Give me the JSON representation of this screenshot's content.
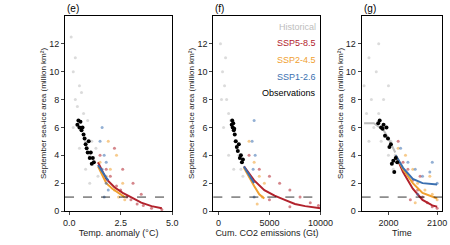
{
  "chart_data": [
    {
      "type": "scatter",
      "title": "(e)",
      "x_label": "Temp. anomaly (°C)",
      "y_label": "September sea-ice area (million km²)",
      "xlim": [
        -0.2,
        5
      ],
      "xticks": [
        {
          "value": 0,
          "label": "0.0"
        },
        {
          "value": 2.5,
          "label": "2.5"
        },
        {
          "value": 5,
          "label": "5.0"
        }
      ],
      "ylim": [
        0,
        14
      ],
      "yticks": [
        0,
        2,
        4,
        6,
        8,
        10,
        12
      ],
      "threshold": 1,
      "series": [
        {
          "name": "Historical",
          "color": "#bdbdbd",
          "marker": "circle",
          "x": [
            0.1,
            0.2,
            0.3,
            0.4,
            0.5,
            0.6,
            0.7,
            0.8,
            0.9,
            1.0,
            1.1,
            1.2,
            1.3,
            1.4,
            0.2,
            0.5,
            0.8,
            1.0,
            0.3,
            0.6
          ],
          "y": [
            12.5,
            10,
            8,
            7.5,
            9,
            6,
            7,
            5,
            6.5,
            4,
            5,
            3.5,
            4.5,
            2.5,
            6,
            4.5,
            3,
            2,
            11,
            8.5
          ]
        },
        {
          "name": "SSP5-8.5",
          "color": "#b2222c",
          "marker": "circle",
          "x": [
            1.5,
            1.8,
            2.0,
            2.3,
            2.5,
            2.8,
            3.0,
            3.3,
            3.6,
            4.0,
            4.5,
            2.2,
            2.6,
            3.1,
            3.5
          ],
          "y": [
            4,
            3,
            2.5,
            1.8,
            1.5,
            1.0,
            0.8,
            0.5,
            0.4,
            0.2,
            0.1,
            4.5,
            3,
            2,
            1.2
          ],
          "trend": {
            "x": [
              1.4,
              1.8,
              2.2,
              2.6,
              3.0,
              3.5,
              4.0,
              4.5
            ],
            "y": [
              3.5,
              2.3,
              1.7,
              1.3,
              1.0,
              0.6,
              0.35,
              0.2
            ]
          }
        },
        {
          "name": "SSP2-4.5",
          "color": "#f0a030",
          "marker": "circle",
          "x": [
            1.5,
            1.8,
            2.0,
            2.2,
            2.4,
            2.7,
            1.9,
            2.3,
            2.6
          ],
          "y": [
            3.5,
            2.5,
            3,
            1.5,
            1,
            0.8,
            5,
            4,
            2
          ],
          "trend": {
            "x": [
              1.4,
              1.8,
              2.1,
              2.4,
              2.7
            ],
            "y": [
              3.2,
              2.0,
              1.6,
              1.3,
              1.0
            ]
          }
        },
        {
          "name": "SSP1-2.6",
          "color": "#3a6fb0",
          "marker": "circle",
          "x": [
            1.5,
            1.6,
            1.7,
            1.8,
            1.9,
            1.6,
            1.7,
            1.8
          ],
          "y": [
            5,
            3,
            4,
            2,
            1.5,
            6,
            1,
            3.5
          ],
          "trend": {
            "x": [
              1.4,
              1.6,
              1.8,
              1.9
            ],
            "y": [
              3.3,
              2.8,
              2.4,
              2.2
            ]
          }
        },
        {
          "name": "Observations",
          "color": "#000000",
          "marker": "circle",
          "x": [
            0.4,
            0.45,
            0.5,
            0.55,
            0.6,
            0.65,
            0.7,
            0.75,
            0.8,
            0.85,
            0.9,
            0.95,
            1.0,
            1.05,
            1.1,
            1.15,
            1.2
          ],
          "y": [
            6.2,
            6.5,
            6.0,
            6.4,
            5.8,
            6.0,
            5.5,
            5.2,
            4.8,
            4.5,
            4.2,
            5.0,
            3.8,
            4.2,
            3.4,
            3.8,
            3.5
          ]
        }
      ]
    },
    {
      "type": "scatter",
      "title": "(f)",
      "x_label": "Cum. CO2 emissions (Gt)",
      "y_label": "September sea-ice area (million km²)",
      "xlim": [
        -500,
        10000
      ],
      "xticks": [
        0,
        5000,
        10000
      ],
      "ylim": [
        0,
        14
      ],
      "yticks": [
        0,
        2,
        4,
        6,
        8,
        10,
        12
      ],
      "threshold": 1,
      "legend": "upper right",
      "series": [
        {
          "name": "Historical",
          "color": "#bdbdbd",
          "marker": "circle",
          "x": [
            200,
            400,
            600,
            800,
            1000,
            1200,
            1400,
            1600,
            1800,
            2000,
            2200,
            2400,
            500,
            1000,
            1500,
            300,
            700
          ],
          "y": [
            12,
            10,
            9,
            8,
            7,
            6.5,
            6,
            5,
            4.5,
            4,
            3,
            2.5,
            6,
            4,
            3,
            8,
            11
          ]
        },
        {
          "name": "SSP5-8.5",
          "color": "#b2222c",
          "marker": "circle",
          "x": [
            3000,
            4000,
            5000,
            6000,
            7000,
            8000,
            9000,
            9800,
            5000,
            7000
          ],
          "y": [
            4,
            3,
            2.5,
            2,
            1.5,
            1,
            0.6,
            0.4,
            0.8,
            0.3
          ],
          "trend": {
            "x": [
              2500,
              3500,
              4500,
              5500,
              6500,
              7500,
              8500,
              10000
            ],
            "y": [
              3.2,
              2.2,
              1.5,
              1.1,
              0.8,
              0.5,
              0.35,
              0.2
            ]
          }
        },
        {
          "name": "SSP2-4.5",
          "color": "#f0a030",
          "marker": "circle",
          "x": [
            3000,
            3500,
            4000,
            4300,
            3800,
            4500
          ],
          "y": [
            5,
            3.5,
            2.5,
            1,
            0.5,
            2
          ],
          "trend": {
            "x": [
              2500,
              3000,
              3500,
              4000,
              4500
            ],
            "y": [
              3.1,
              2.4,
              1.8,
              1.2,
              0.9
            ]
          }
        },
        {
          "name": "SSP1-2.6",
          "color": "#3a6fb0",
          "marker": "circle",
          "x": [
            3300,
            3400,
            3500,
            3600,
            3500
          ],
          "y": [
            5,
            3,
            1,
            4,
            6.5
          ],
          "trend": {
            "x": [
              2500,
              3000,
              3300,
              3500
            ],
            "y": [
              3.2,
              2.6,
              2.2,
              2.0
            ]
          }
        },
        {
          "name": "Observations",
          "color": "#000000",
          "marker": "circle",
          "x": [
            1300,
            1350,
            1400,
            1450,
            1500,
            1550,
            1600,
            1700,
            1800,
            1900,
            2000,
            2100,
            2200,
            2300,
            2400
          ],
          "y": [
            6.2,
            6.5,
            6,
            6.3,
            5.8,
            5.9,
            5.5,
            5,
            4.6,
            4.3,
            4.8,
            3.8,
            4,
            3.5,
            3.7
          ]
        }
      ]
    },
    {
      "type": "scatter",
      "title": "(g)",
      "x_label": "Time",
      "y_label": "September sea-ice area (million km²)",
      "xlim": [
        1945,
        2110
      ],
      "xticks": [
        2000,
        2100
      ],
      "ylim": [
        0,
        14
      ],
      "yticks": [
        0,
        2,
        4,
        6,
        8,
        10,
        12
      ],
      "threshold": 1,
      "series": [
        {
          "name": "Historical",
          "color": "#bdbdbd",
          "marker": "circle",
          "x": [
            1950,
            1955,
            1960,
            1965,
            1970,
            1975,
            1980,
            1985,
            1990,
            1995,
            2000,
            2005,
            2010,
            2014,
            1960,
            1980,
            2000
          ],
          "y": [
            9,
            7,
            11,
            8,
            6,
            10,
            7,
            5,
            8,
            6,
            4,
            5,
            3,
            4,
            5,
            12,
            9
          ],
          "trend": {
            "x": [
              1950,
              1970,
              1990,
              2000,
              2014
            ],
            "y": [
              6.3,
              6.3,
              5.8,
              5.2,
              4.2
            ]
          }
        },
        {
          "name": "SSP5-8.5",
          "color": "#b2222c",
          "marker": "circle",
          "x": [
            2020,
            2030,
            2040,
            2050,
            2060,
            2070,
            2080,
            2090,
            2100,
            2045,
            2065
          ],
          "y": [
            5,
            3.5,
            3,
            2.2,
            1.5,
            1,
            0.6,
            0.3,
            0.2,
            0.8,
            2.5
          ],
          "trend": {
            "x": [
              2015,
              2030,
              2050,
              2070,
              2090,
              2100
            ],
            "y": [
              4.0,
              2.8,
              1.6,
              0.8,
              0.4,
              0.3
            ]
          }
        },
        {
          "name": "SSP2-4.5",
          "color": "#f0a030",
          "marker": "circle",
          "x": [
            2020,
            2035,
            2050,
            2060,
            2075,
            2090,
            2100,
            2055,
            2085
          ],
          "y": [
            4.5,
            4,
            3,
            2,
            1.5,
            1.2,
            0.8,
            0.6,
            2.5
          ],
          "trend": {
            "x": [
              2015,
              2030,
              2050,
              2070,
              2100
            ],
            "y": [
              4,
              3,
              2,
              1.3,
              0.9
            ]
          }
        },
        {
          "name": "SSP1-2.6",
          "color": "#3a6fb0",
          "marker": "circle",
          "x": [
            2025,
            2040,
            2055,
            2070,
            2085,
            2100,
            2060,
            2090
          ],
          "y": [
            4.5,
            3.5,
            3,
            2.5,
            2.8,
            2,
            1.2,
            3.5
          ],
          "trend": {
            "x": [
              2015,
              2030,
              2050,
              2070,
              2100
            ],
            "y": [
              4,
              3.1,
              2.3,
              2.0,
              1.9
            ]
          }
        },
        {
          "name": "Observations",
          "color": "#000000",
          "marker": "circle",
          "x": [
            1979,
            1982,
            1985,
            1988,
            1990,
            1993,
            1996,
            1999,
            2002,
            2005,
            2007,
            2010,
            2012,
            2015,
            2018
          ],
          "y": [
            6.3,
            6.5,
            6,
            5.9,
            6.2,
            5.4,
            6,
            5.2,
            4.6,
            4.8,
            3.4,
            3.6,
            2.8,
            3.8,
            3.5
          ]
        }
      ]
    }
  ]
}
